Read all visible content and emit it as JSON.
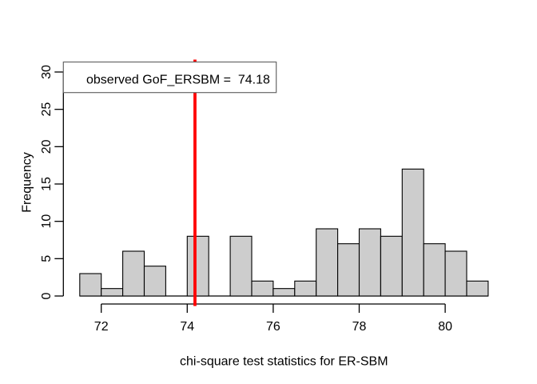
{
  "meta": {
    "background": "#FFFFFF"
  },
  "chart_data": {
    "type": "bar",
    "subtype": "histogram",
    "title": "",
    "xlabel": "chi-square test statistics for ER-SBM",
    "ylabel": "Frequency",
    "bins": {
      "start": 71.5,
      "width": 0.5
    },
    "counts": [
      3,
      1,
      6,
      4,
      0,
      8,
      0,
      8,
      2,
      1,
      2,
      9,
      7,
      9,
      8,
      17,
      7,
      6,
      2
    ],
    "x_ticks": [
      72,
      74,
      76,
      78,
      80
    ],
    "y_ticks": [
      0,
      5,
      10,
      15,
      20,
      25,
      30
    ],
    "xlim": [
      71.5,
      81
    ],
    "ylim": [
      0,
      30
    ],
    "grid": false,
    "vline": {
      "value": 74.18,
      "color": "#FF0000"
    },
    "legend": {
      "position": "topleft",
      "text": "observed GoF_ERSBM =  74.18"
    },
    "colors": {
      "bar_fill": "#CDCDCD",
      "bar_stroke": "#000000",
      "axis": "#000000",
      "legend_border": "#666666",
      "legend_fill": "#FFFFFF"
    }
  }
}
